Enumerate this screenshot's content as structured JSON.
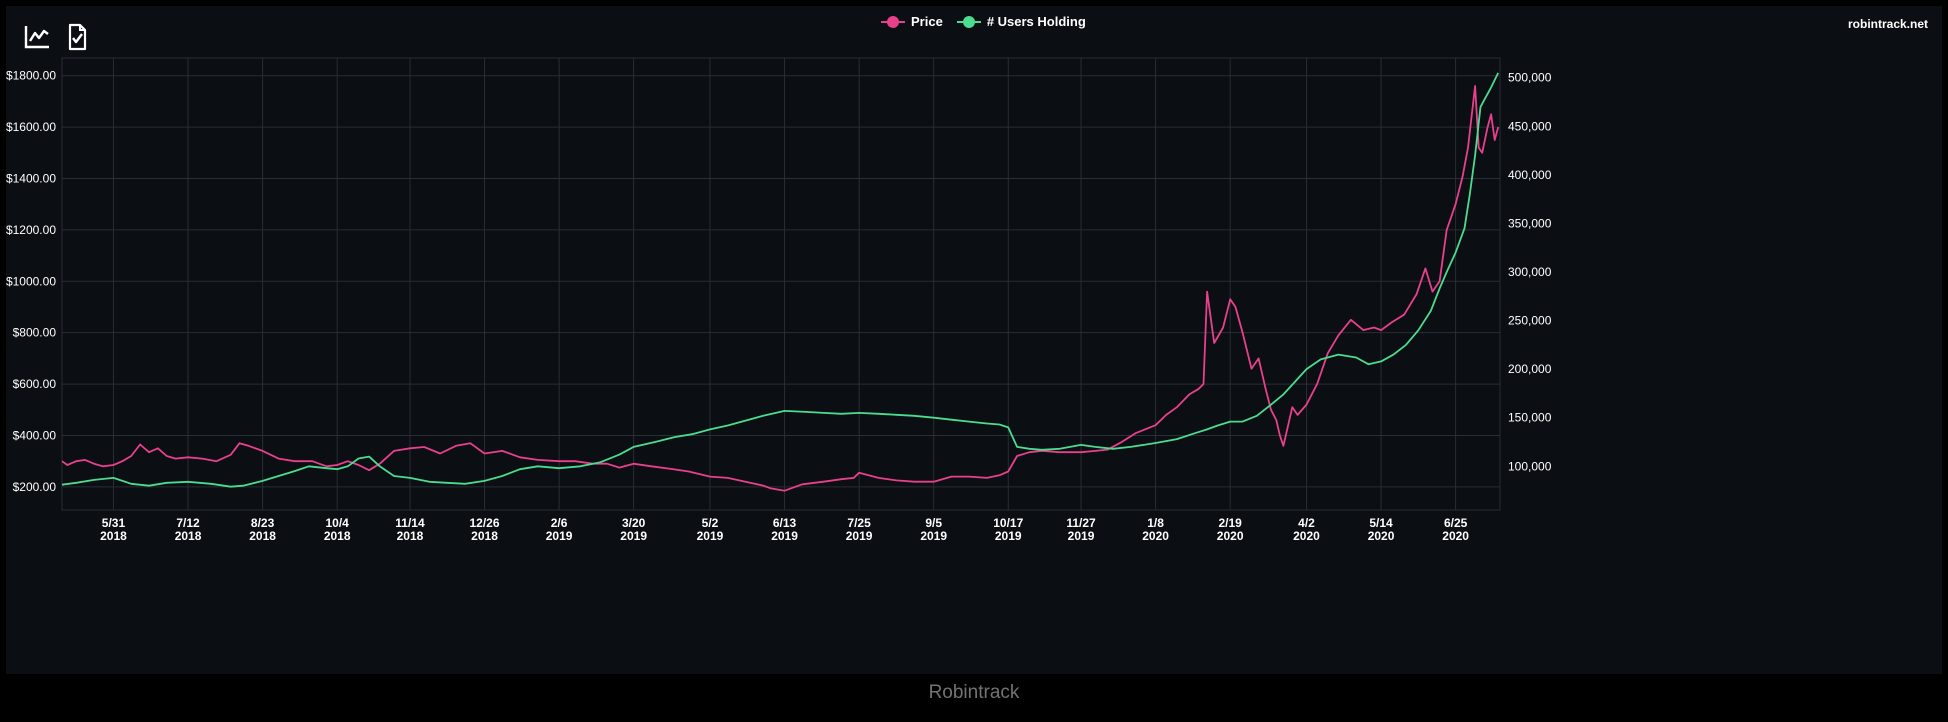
{
  "toolbar": {
    "chart_icon": "line-chart-icon",
    "doc_icon": "document-check-icon"
  },
  "site_label": "robintrack.net",
  "footer": "Robintrack",
  "colors": {
    "background": "#0b0e13",
    "grid": "#2a2e35",
    "price": "#e8408c",
    "users": "#4bdc8f",
    "text": "#ffffff",
    "footer": "#737373"
  },
  "chart_data": {
    "type": "line",
    "x_tick_labels": [
      [
        "5/31",
        "2018"
      ],
      [
        "7/12",
        "2018"
      ],
      [
        "8/23",
        "2018"
      ],
      [
        "10/4",
        "2018"
      ],
      [
        "11/14",
        "2018"
      ],
      [
        "12/26",
        "2018"
      ],
      [
        "2/6",
        "2019"
      ],
      [
        "3/20",
        "2019"
      ],
      [
        "5/2",
        "2019"
      ],
      [
        "6/13",
        "2019"
      ],
      [
        "7/25",
        "2019"
      ],
      [
        "9/5",
        "2019"
      ],
      [
        "10/17",
        "2019"
      ],
      [
        "11/27",
        "2019"
      ],
      [
        "1/8",
        "2020"
      ],
      [
        "2/19",
        "2020"
      ],
      [
        "4/2",
        "2020"
      ],
      [
        "5/14",
        "2020"
      ],
      [
        "6/25",
        "2020"
      ]
    ],
    "x_tick_dates": [
      "2018-05-31",
      "2018-07-12",
      "2018-08-23",
      "2018-10-04",
      "2018-11-14",
      "2018-12-26",
      "2019-02-06",
      "2019-03-20",
      "2019-05-02",
      "2019-06-13",
      "2019-07-25",
      "2019-09-05",
      "2019-10-17",
      "2019-11-27",
      "2020-01-08",
      "2020-02-19",
      "2020-04-02",
      "2020-05-14",
      "2020-06-25"
    ],
    "xlim": [
      "2018-05-02",
      "2020-07-20"
    ],
    "y_left": {
      "ticks": [
        200,
        400,
        600,
        800,
        1000,
        1200,
        1400,
        1600,
        1800
      ],
      "tick_labels": [
        "$200.00",
        "$400.00",
        "$600.00",
        "$800.00",
        "$1000.00",
        "$1200.00",
        "$1400.00",
        "$1600.00",
        "$1800.00"
      ],
      "lim": [
        110,
        1830
      ]
    },
    "y_right": {
      "ticks": [
        100000,
        150000,
        200000,
        250000,
        300000,
        350000,
        400000,
        450000,
        500000
      ],
      "tick_labels": [
        "100,000",
        "150,000",
        "200,000",
        "250,000",
        "300,000",
        "350,000",
        "400,000",
        "450,000",
        "500,000"
      ],
      "lim": [
        55000,
        510000
      ]
    },
    "grid": true,
    "legend": "top-center",
    "series": [
      {
        "name": "Price",
        "axis": "left",
        "x": [
          "2018-05-02",
          "2018-05-05",
          "2018-05-10",
          "2018-05-15",
          "2018-05-20",
          "2018-05-25",
          "2018-05-31",
          "2018-06-05",
          "2018-06-10",
          "2018-06-15",
          "2018-06-20",
          "2018-06-25",
          "2018-06-30",
          "2018-07-05",
          "2018-07-12",
          "2018-07-20",
          "2018-07-28",
          "2018-08-05",
          "2018-08-10",
          "2018-08-15",
          "2018-08-23",
          "2018-09-01",
          "2018-09-10",
          "2018-09-20",
          "2018-09-28",
          "2018-10-04",
          "2018-10-10",
          "2018-10-16",
          "2018-10-22",
          "2018-10-28",
          "2018-11-05",
          "2018-11-14",
          "2018-11-22",
          "2018-12-01",
          "2018-12-10",
          "2018-12-18",
          "2018-12-26",
          "2019-01-05",
          "2019-01-15",
          "2019-01-25",
          "2019-02-06",
          "2019-02-15",
          "2019-02-25",
          "2019-03-05",
          "2019-03-12",
          "2019-03-20",
          "2019-03-30",
          "2019-04-10",
          "2019-04-20",
          "2019-05-02",
          "2019-05-12",
          "2019-05-22",
          "2019-06-01",
          "2019-06-05",
          "2019-06-13",
          "2019-06-23",
          "2019-07-05",
          "2019-07-15",
          "2019-07-22",
          "2019-07-25",
          "2019-08-05",
          "2019-08-15",
          "2019-08-25",
          "2019-09-05",
          "2019-09-15",
          "2019-09-25",
          "2019-10-05",
          "2019-10-12",
          "2019-10-17",
          "2019-10-22",
          "2019-10-29",
          "2019-11-05",
          "2019-11-15",
          "2019-11-27",
          "2019-12-05",
          "2019-12-12",
          "2019-12-20",
          "2019-12-28",
          "2020-01-08",
          "2020-01-14",
          "2020-01-20",
          "2020-01-27",
          "2020-02-01",
          "2020-02-04",
          "2020-02-06",
          "2020-02-10",
          "2020-02-15",
          "2020-02-19",
          "2020-02-22",
          "2020-02-26",
          "2020-03-02",
          "2020-03-06",
          "2020-03-10",
          "2020-03-13",
          "2020-03-16",
          "2020-03-18",
          "2020-03-20",
          "2020-03-25",
          "2020-03-28",
          "2020-04-02",
          "2020-04-08",
          "2020-04-14",
          "2020-04-20",
          "2020-04-27",
          "2020-05-04",
          "2020-05-10",
          "2020-05-14",
          "2020-05-20",
          "2020-05-27",
          "2020-06-03",
          "2020-06-08",
          "2020-06-12",
          "2020-06-16",
          "2020-06-20",
          "2020-06-25",
          "2020-06-29",
          "2020-07-02",
          "2020-07-06",
          "2020-07-08",
          "2020-07-10",
          "2020-07-13",
          "2020-07-15",
          "2020-07-17",
          "2020-07-19"
        ],
        "values": [
          300,
          285,
          300,
          305,
          290,
          280,
          285,
          300,
          320,
          365,
          335,
          350,
          320,
          310,
          315,
          310,
          300,
          325,
          370,
          360,
          340,
          310,
          300,
          300,
          280,
          285,
          300,
          285,
          265,
          290,
          340,
          350,
          355,
          330,
          360,
          370,
          330,
          340,
          315,
          305,
          300,
          300,
          290,
          290,
          275,
          290,
          280,
          270,
          260,
          240,
          235,
          220,
          205,
          195,
          185,
          210,
          220,
          230,
          235,
          255,
          235,
          225,
          220,
          220,
          240,
          240,
          235,
          245,
          260,
          320,
          335,
          340,
          335,
          335,
          340,
          345,
          375,
          410,
          440,
          480,
          510,
          560,
          580,
          600,
          960,
          760,
          820,
          930,
          900,
          800,
          660,
          700,
          580,
          500,
          460,
          400,
          360,
          510,
          480,
          520,
          600,
          720,
          790,
          850,
          810,
          820,
          810,
          840,
          870,
          950,
          1050,
          960,
          1000,
          1200,
          1300,
          1410,
          1520,
          1760,
          1520,
          1500,
          1600,
          1650,
          1550,
          1600
        ]
      },
      {
        "name": "# Users Holding",
        "axis": "right",
        "x": [
          "2018-05-02",
          "2018-05-10",
          "2018-05-20",
          "2018-05-31",
          "2018-06-10",
          "2018-06-20",
          "2018-06-30",
          "2018-07-12",
          "2018-07-25",
          "2018-08-05",
          "2018-08-12",
          "2018-08-23",
          "2018-09-01",
          "2018-09-10",
          "2018-09-18",
          "2018-09-28",
          "2018-10-04",
          "2018-10-10",
          "2018-10-16",
          "2018-10-22",
          "2018-10-28",
          "2018-11-05",
          "2018-11-14",
          "2018-11-25",
          "2018-12-05",
          "2018-12-15",
          "2018-12-26",
          "2019-01-05",
          "2019-01-15",
          "2019-01-25",
          "2019-02-06",
          "2019-02-18",
          "2019-03-01",
          "2019-03-12",
          "2019-03-20",
          "2019-04-01",
          "2019-04-12",
          "2019-04-22",
          "2019-05-02",
          "2019-05-12",
          "2019-05-22",
          "2019-06-01",
          "2019-06-13",
          "2019-06-25",
          "2019-07-05",
          "2019-07-15",
          "2019-07-25",
          "2019-08-05",
          "2019-08-15",
          "2019-08-25",
          "2019-09-05",
          "2019-09-15",
          "2019-09-25",
          "2019-10-05",
          "2019-10-12",
          "2019-10-17",
          "2019-10-22",
          "2019-10-29",
          "2019-11-05",
          "2019-11-15",
          "2019-11-27",
          "2019-12-05",
          "2019-12-15",
          "2019-12-25",
          "2020-01-08",
          "2020-01-20",
          "2020-01-30",
          "2020-02-06",
          "2020-02-12",
          "2020-02-19",
          "2020-02-26",
          "2020-03-05",
          "2020-03-12",
          "2020-03-20",
          "2020-03-28",
          "2020-04-02",
          "2020-04-10",
          "2020-04-20",
          "2020-04-30",
          "2020-05-07",
          "2020-05-14",
          "2020-05-21",
          "2020-05-28",
          "2020-06-04",
          "2020-06-11",
          "2020-06-16",
          "2020-06-20",
          "2020-06-25",
          "2020-06-30",
          "2020-07-03",
          "2020-07-06",
          "2020-07-09",
          "2020-07-12",
          "2020-07-15",
          "2020-07-19"
        ],
        "values": [
          81000,
          83000,
          86000,
          88000,
          82000,
          80000,
          83000,
          84000,
          82000,
          79000,
          80000,
          85000,
          90000,
          95000,
          100000,
          98000,
          97000,
          100000,
          108000,
          110000,
          100000,
          90000,
          88000,
          84000,
          83000,
          82000,
          85000,
          90000,
          97000,
          100000,
          98000,
          100000,
          104000,
          112000,
          120000,
          125000,
          130000,
          133000,
          138000,
          142000,
          147000,
          152000,
          157000,
          156000,
          155000,
          154000,
          155000,
          154000,
          153000,
          152000,
          150000,
          148000,
          146000,
          144000,
          143000,
          140000,
          120000,
          118000,
          117000,
          118000,
          122000,
          120000,
          118000,
          120000,
          124000,
          128000,
          134000,
          138000,
          142000,
          146000,
          146000,
          152000,
          162000,
          174000,
          190000,
          200000,
          210000,
          215000,
          212000,
          205000,
          208000,
          215000,
          225000,
          240000,
          260000,
          283000,
          300000,
          320000,
          345000,
          380000,
          420000,
          470000,
          480000,
          490000,
          505000
        ]
      }
    ]
  }
}
